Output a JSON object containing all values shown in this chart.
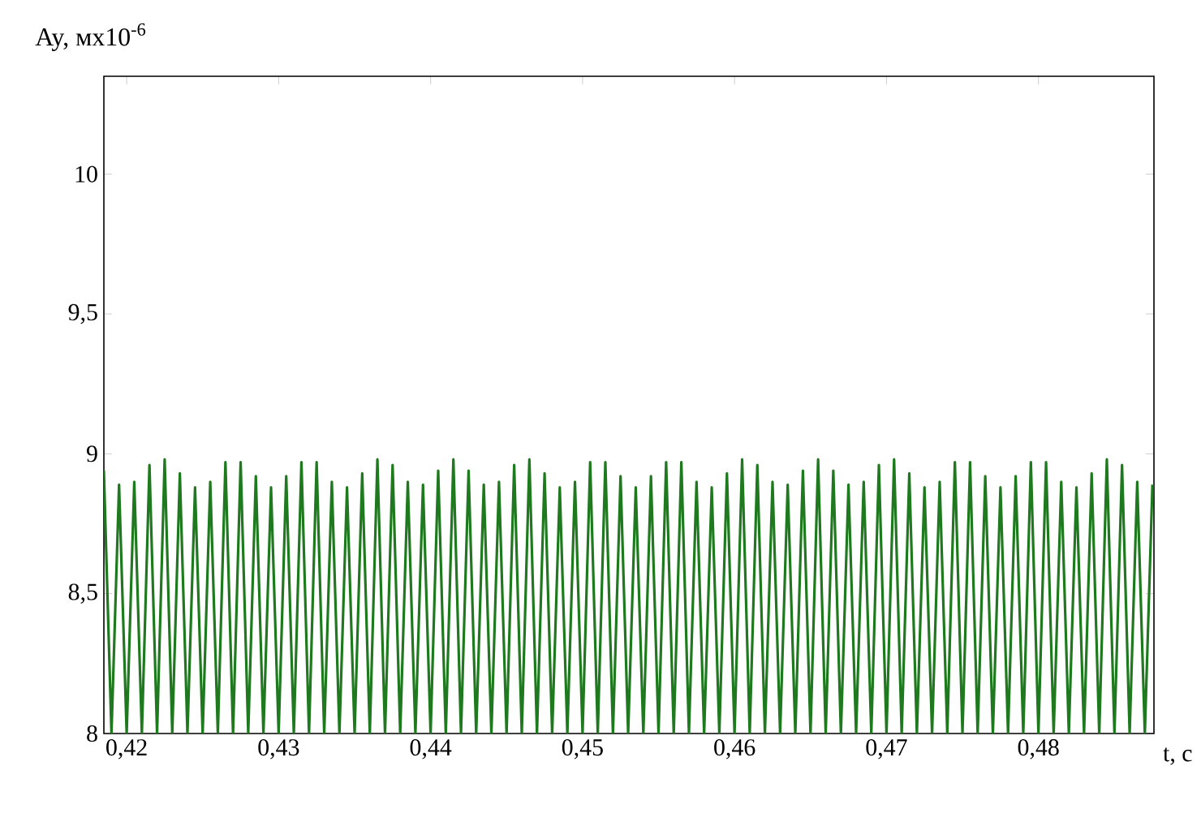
{
  "chart_data": {
    "type": "line",
    "xlabel": "t, c",
    "ylabel": "Ay, мх10$^{-6}$",
    "xlim": [
      0.4185,
      0.4876
    ],
    "ylim": [
      8,
      10.35
    ],
    "xticks": [
      {
        "value": 0.42,
        "label": "0,42"
      },
      {
        "value": 0.43,
        "label": "0,43"
      },
      {
        "value": 0.44,
        "label": "0,44"
      },
      {
        "value": 0.45,
        "label": "0,45"
      },
      {
        "value": 0.46,
        "label": "0,46"
      },
      {
        "value": 0.47,
        "label": "0,47"
      },
      {
        "value": 0.48,
        "label": "0,48"
      }
    ],
    "yticks": [
      8,
      {
        "value": 8.5,
        "label": "8,5"
      },
      9,
      {
        "value": 9.5,
        "label": "9,5"
      },
      10
    ],
    "series": [
      {
        "color": "#1f7a1f",
        "x": [
          0.4185,
          0.419,
          0.4195,
          0.42,
          0.4205,
          0.421,
          0.4215,
          0.422,
          0.4225,
          0.423,
          0.4235,
          0.424,
          0.4245,
          0.425,
          0.4255,
          0.426,
          0.4265,
          0.427,
          0.4275,
          0.428,
          0.4285,
          0.429,
          0.4295,
          0.43,
          0.4305,
          0.431,
          0.4315,
          0.432,
          0.4325,
          0.433,
          0.4335,
          0.434,
          0.4345,
          0.435,
          0.4355,
          0.436,
          0.4365,
          0.437,
          0.4375,
          0.438,
          0.4385,
          0.439,
          0.4395,
          0.44,
          0.4405,
          0.441,
          0.4415,
          0.442,
          0.4425,
          0.443,
          0.4435,
          0.444,
          0.4445,
          0.445,
          0.4455,
          0.446,
          0.4465,
          0.447,
          0.4475,
          0.448,
          0.4485,
          0.449,
          0.4495,
          0.45,
          0.4505,
          0.451,
          0.4515,
          0.452,
          0.4525,
          0.453,
          0.4535,
          0.454,
          0.4545,
          0.455,
          0.4555,
          0.456,
          0.4565,
          0.457,
          0.4575,
          0.458,
          0.4585,
          0.459,
          0.4595,
          0.46,
          0.4605,
          0.461,
          0.4615,
          0.462,
          0.4625,
          0.463,
          0.4635,
          0.464,
          0.4645,
          0.465,
          0.4655,
          0.466,
          0.4665,
          0.467,
          0.4675,
          0.468,
          0.4685,
          0.469,
          0.4695,
          0.47,
          0.4705,
          0.471,
          0.4715,
          0.472,
          0.4725,
          0.473,
          0.4735,
          0.474,
          0.4745,
          0.475,
          0.4755,
          0.476,
          0.4765,
          0.477,
          0.4775,
          0.478,
          0.4785,
          0.479,
          0.4795,
          0.48,
          0.4805,
          0.481,
          0.4815,
          0.482,
          0.4825,
          0.483,
          0.4835,
          0.484,
          0.4845,
          0.485,
          0.4855,
          0.486,
          0.4865,
          0.487,
          0.4875
        ],
        "values": [
          8.94,
          8,
          8.89,
          8,
          8.9,
          8,
          8.96,
          8,
          8.98,
          8,
          8.93,
          8,
          8.88,
          8,
          8.9,
          8,
          8.97,
          8,
          8.97,
          8,
          8.92,
          8,
          8.88,
          8,
          8.92,
          8,
          8.97,
          8,
          8.97,
          8,
          8.9,
          8,
          8.88,
          8,
          8.93,
          8,
          8.98,
          8,
          8.96,
          8,
          8.9,
          8,
          8.89,
          8,
          8.94,
          8,
          8.98,
          8,
          8.94,
          8,
          8.89,
          8,
          8.9,
          8,
          8.96,
          8,
          8.98,
          8,
          8.93,
          8,
          8.88,
          8,
          8.9,
          8,
          8.97,
          8,
          8.97,
          8,
          8.92,
          8,
          8.88,
          8,
          8.92,
          8,
          8.97,
          8,
          8.97,
          8,
          8.9,
          8,
          8.88,
          8,
          8.93,
          8,
          8.98,
          8,
          8.96,
          8,
          8.9,
          8,
          8.89,
          8,
          8.94,
          8,
          8.98,
          8,
          8.94,
          8,
          8.89,
          8,
          8.9,
          8,
          8.96,
          8,
          8.98,
          8,
          8.93,
          8,
          8.88,
          8,
          8.9,
          8,
          8.97,
          8,
          8.97,
          8,
          8.92,
          8,
          8.88,
          8,
          8.92,
          8,
          8.97,
          8,
          8.97,
          8,
          8.9,
          8,
          8.88,
          8,
          8.93,
          8,
          8.98,
          8,
          8.96,
          8,
          8.9,
          8,
          8.89
        ]
      }
    ]
  }
}
